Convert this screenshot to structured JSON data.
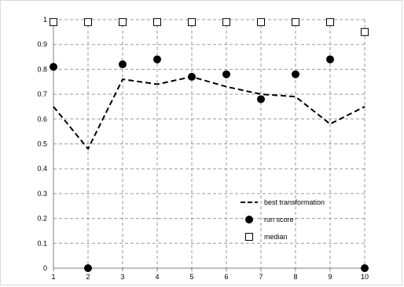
{
  "chart_data": {
    "type": "line",
    "x": [
      1,
      2,
      3,
      4,
      5,
      6,
      7,
      8,
      9,
      10
    ],
    "xlim": [
      1,
      10
    ],
    "ylim": [
      0,
      1
    ],
    "yticks": [
      0,
      0.1,
      0.2,
      0.3,
      0.4,
      0.5,
      0.6,
      0.7,
      0.8,
      0.9,
      1
    ],
    "xticks": [
      1,
      2,
      3,
      4,
      5,
      6,
      7,
      8,
      9,
      10
    ],
    "grid": true,
    "legend_position": "lower-right",
    "series": [
      {
        "name": "best transformation",
        "style": "dashed-line",
        "color": "#000000",
        "values": [
          0.65,
          0.48,
          0.76,
          0.74,
          0.77,
          0.73,
          0.7,
          0.69,
          0.58,
          0.65
        ]
      },
      {
        "name": "run score",
        "style": "filled-circle",
        "color": "#000000",
        "values": [
          0.81,
          0.0,
          0.82,
          0.84,
          0.77,
          0.78,
          0.68,
          0.78,
          0.84,
          0.0
        ]
      },
      {
        "name": "median",
        "style": "open-square",
        "color": "#000000",
        "values": [
          0.99,
          0.99,
          0.99,
          0.99,
          0.99,
          0.99,
          0.99,
          0.99,
          0.99,
          0.95
        ]
      }
    ]
  }
}
